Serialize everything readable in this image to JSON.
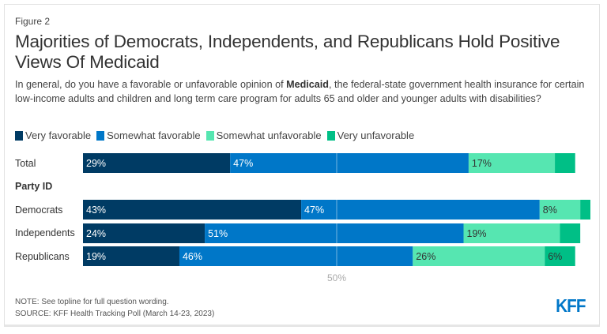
{
  "figure_label": "Figure 2",
  "title": "Majorities of Democrats, Independents, and Republicans Hold Positive Views Of Medicaid",
  "subtitle": {
    "before": "In general, do you have a favorable or unfavorable opinion of ",
    "bold": "Medicaid",
    "after": ", the federal-state government health insurance for certain low-income adults and children and long term care program for adults 65 and older and younger adults with disabilities?"
  },
  "section_label": "Party ID",
  "chart_data": {
    "type": "bar",
    "orientation": "horizontal",
    "stacked": true,
    "categories": [
      "Total",
      "Democrats",
      "Independents",
      "Republicans"
    ],
    "series": [
      {
        "name": "Very favorable",
        "color": "#003b64",
        "values": [
          29,
          43,
          24,
          19
        ],
        "labels": [
          "29%",
          "43%",
          "24%",
          "19%"
        ]
      },
      {
        "name": "Somewhat favorable",
        "color": "#0077c8",
        "values": [
          47,
          47,
          51,
          46
        ],
        "labels": [
          "47%",
          "47%",
          "51%",
          "46%"
        ]
      },
      {
        "name": "Somewhat unfavorable",
        "color": "#56e6b1",
        "values": [
          17,
          8,
          19,
          26
        ],
        "labels": [
          "17%",
          "8%",
          "19%",
          "26%"
        ]
      },
      {
        "name": "Very unfavorable",
        "color": "#00bf86",
        "values": [
          4,
          2,
          4,
          6
        ],
        "labels": [
          "",
          "",
          "",
          "6%"
        ]
      }
    ],
    "xlim": [
      0,
      100
    ],
    "reference_line": 50,
    "reference_label": "50%",
    "legend_position": "top-left"
  },
  "note": "NOTE: See topline for full question wording.",
  "source": "SOURCE: KFF Health Tracking Poll (March 14-23, 2023)",
  "logo_text": "KFF"
}
